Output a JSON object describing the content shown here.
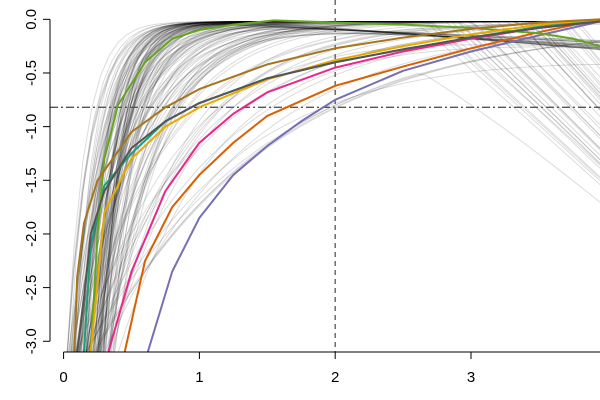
{
  "chart_data": {
    "type": "line",
    "title": "",
    "xlabel": "",
    "ylabel": "",
    "xlim": [
      -0.1,
      3.95
    ],
    "ylim": [
      -3.1,
      0.18
    ],
    "grid": false,
    "x_ticks": [
      0,
      1,
      2,
      3
    ],
    "x_tick_labels": [
      "0",
      "1",
      "2",
      "3"
    ],
    "y_ticks": [
      0.0,
      -0.5,
      -1.0,
      -1.5,
      -2.0,
      -2.5,
      -3.0
    ],
    "y_tick_labels": [
      "0.0",
      "-0.5",
      "-1.0",
      "-1.5",
      "-2.0",
      "-2.5",
      "-3.0"
    ],
    "reference_lines": [
      {
        "orientation": "vertical",
        "value": 2,
        "style": "dashed",
        "color": "#555555"
      },
      {
        "orientation": "horizontal",
        "value": -0.82,
        "style": "dashdot",
        "color": "#555555"
      }
    ],
    "background_series": {
      "color": "#000000",
      "opacity": 0.14,
      "count": 140,
      "description_values": "family of log-relative curves rising from about -3 toward 0 near x=0 to 4"
    },
    "series": [
      {
        "color": "#1B9E77",
        "x": [
          0.15,
          0.2,
          0.3,
          0.5,
          0.75,
          1.0,
          1.5,
          2.0,
          2.5,
          3.0,
          3.5,
          3.95
        ],
        "y": [
          -3.1,
          -2.1,
          -1.55,
          -1.25,
          -0.95,
          -0.78,
          -0.55,
          -0.4,
          -0.28,
          -0.17,
          -0.07,
          0.0
        ]
      },
      {
        "color": "#D95F02",
        "x": [
          0.45,
          0.6,
          0.8,
          1.0,
          1.25,
          1.5,
          2.0,
          2.5,
          3.0,
          3.5,
          3.95
        ],
        "y": [
          -3.1,
          -2.25,
          -1.75,
          -1.45,
          -1.15,
          -0.9,
          -0.62,
          -0.44,
          -0.27,
          -0.12,
          0.0
        ]
      },
      {
        "color": "#7570B3",
        "x": [
          0.62,
          0.8,
          1.0,
          1.25,
          1.5,
          1.75,
          2.0,
          2.5,
          3.0,
          3.5,
          3.95
        ],
        "y": [
          -3.1,
          -2.35,
          -1.85,
          -1.45,
          -1.18,
          -0.95,
          -0.75,
          -0.48,
          -0.3,
          -0.15,
          -0.02
        ]
      },
      {
        "color": "#E7298A",
        "x": [
          0.33,
          0.5,
          0.75,
          1.0,
          1.25,
          1.5,
          2.0,
          2.5,
          3.0,
          3.5,
          3.95
        ],
        "y": [
          -3.1,
          -2.35,
          -1.6,
          -1.15,
          -0.88,
          -0.68,
          -0.45,
          -0.3,
          -0.18,
          -0.08,
          -0.02
        ]
      },
      {
        "color": "#66A61E",
        "x": [
          0.2,
          0.25,
          0.3,
          0.4,
          0.6,
          0.8,
          1.0,
          1.25,
          1.55,
          2.0,
          2.5,
          3.0,
          3.5,
          3.75,
          3.95
        ],
        "y": [
          -3.1,
          -2.0,
          -1.3,
          -0.8,
          -0.4,
          -0.18,
          -0.1,
          -0.05,
          -0.01,
          -0.03,
          -0.05,
          -0.08,
          -0.13,
          -0.18,
          -0.25
        ]
      },
      {
        "color": "#E6AB02",
        "x": [
          0.2,
          0.3,
          0.5,
          0.75,
          1.0,
          1.5,
          2.0,
          2.5,
          3.0,
          3.5,
          3.95
        ],
        "y": [
          -3.1,
          -1.8,
          -1.3,
          -1.0,
          -0.82,
          -0.56,
          -0.38,
          -0.25,
          -0.14,
          -0.05,
          0.0
        ]
      },
      {
        "color": "#A6761D",
        "x": [
          0.08,
          0.1,
          0.15,
          0.25,
          0.5,
          0.75,
          1.0,
          1.5,
          2.0,
          2.5,
          3.0,
          3.5,
          3.95
        ],
        "y": [
          -3.1,
          -2.4,
          -1.9,
          -1.5,
          -1.05,
          -0.82,
          -0.65,
          -0.42,
          -0.27,
          -0.17,
          -0.09,
          -0.03,
          0.0
        ]
      },
      {
        "color": "#555555",
        "x": [
          0.1,
          0.15,
          0.2,
          0.3,
          0.5,
          0.75,
          1.0,
          1.5,
          2.0,
          2.5,
          3.0,
          3.5,
          3.95
        ],
        "y": [
          -3.1,
          -2.6,
          -2.0,
          -1.6,
          -1.2,
          -0.95,
          -0.78,
          -0.55,
          -0.4,
          -0.28,
          -0.17,
          -0.08,
          -0.02
        ]
      }
    ]
  }
}
